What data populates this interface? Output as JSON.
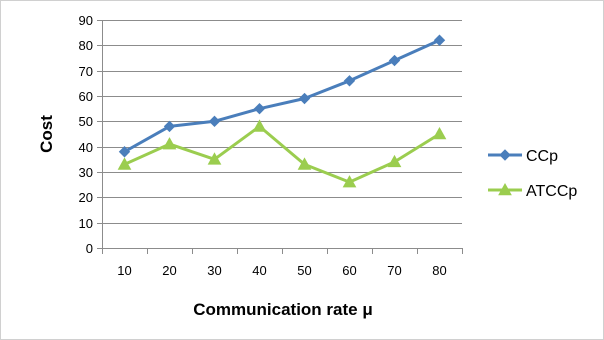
{
  "chart_data": {
    "type": "line",
    "title": "",
    "xlabel": "Communication rate μ",
    "ylabel": "Cost",
    "categories": [
      "10",
      "20",
      "30",
      "40",
      "50",
      "60",
      "70",
      "80"
    ],
    "ylim": [
      0,
      90
    ],
    "yticks": [
      "0",
      "10",
      "20",
      "30",
      "40",
      "50",
      "60",
      "70",
      "80",
      "90"
    ],
    "grid": true,
    "legend_position": "right",
    "series": [
      {
        "name": "CCp",
        "values": [
          38,
          48,
          50,
          55,
          59,
          66,
          74,
          82
        ],
        "color": "#4a7ebb",
        "marker": "diamond"
      },
      {
        "name": "ATCCp",
        "values": [
          33,
          41,
          35,
          48,
          33,
          26,
          34,
          45
        ],
        "color": "#9bcd4f",
        "marker": "triangle"
      }
    ]
  }
}
